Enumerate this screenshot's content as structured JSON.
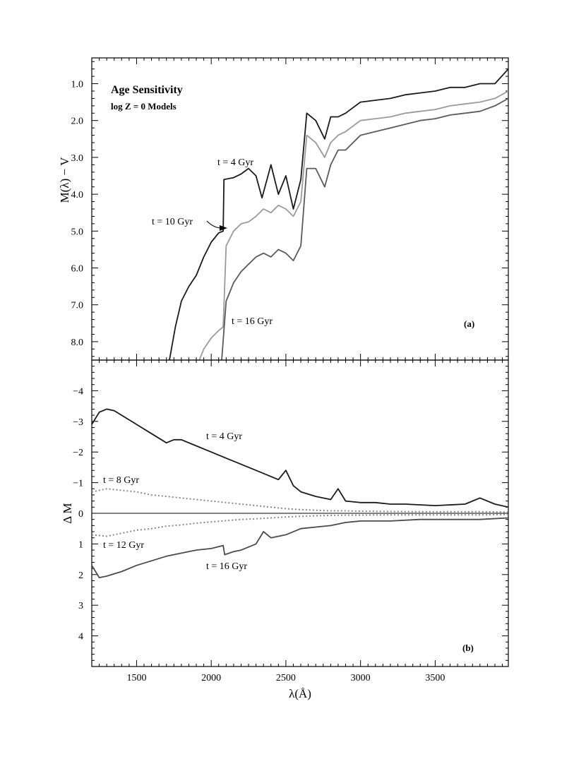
{
  "chart_data": [
    {
      "panel": "a",
      "type": "line",
      "title": "Age Sensitivity",
      "subtitle": "log Z = 0 Models",
      "panel_label": "(a)",
      "ylabel": "M(λ) − V",
      "xlim": [
        1200,
        3990
      ],
      "ylim": [
        8.5,
        0.3
      ],
      "y_inverted": true,
      "yticks": [
        1.0,
        2.0,
        3.0,
        4.0,
        5.0,
        6.0,
        7.0,
        8.0
      ],
      "ytick_labels": [
        "1.0",
        "2.0",
        "3.0",
        "4.0",
        "5.0",
        "6.0",
        "7.0",
        "8.0"
      ],
      "colors": {
        "t4": "#1a1a1a",
        "t10": "#9a9a9a",
        "t16": "#5a5a5a"
      },
      "annotations": [
        "t = 4 Gyr",
        "t = 10 Gyr",
        "t = 16 Gyr"
      ],
      "series": [
        {
          "key": "t4",
          "x": [
            1720,
            1760,
            1800,
            1850,
            1900,
            1950,
            2000,
            2050,
            2080,
            2085,
            2150,
            2200,
            2250,
            2300,
            2340,
            2400,
            2450,
            2500,
            2550,
            2600,
            2640,
            2700,
            2760,
            2800,
            2850,
            2900,
            3000,
            3100,
            3200,
            3300,
            3400,
            3500,
            3600,
            3700,
            3800,
            3900,
            3990
          ],
          "y": [
            8.5,
            7.6,
            6.9,
            6.5,
            6.2,
            5.7,
            5.3,
            5.05,
            5.0,
            3.6,
            3.55,
            3.45,
            3.3,
            3.5,
            4.1,
            3.2,
            4.0,
            3.5,
            4.4,
            3.6,
            1.8,
            2.0,
            2.5,
            1.9,
            1.9,
            1.8,
            1.5,
            1.45,
            1.4,
            1.3,
            1.25,
            1.2,
            1.1,
            1.1,
            1.0,
            1.0,
            0.6
          ]
        },
        {
          "key": "t10",
          "x": [
            1920,
            1950,
            2000,
            2050,
            2080,
            2100,
            2150,
            2200,
            2250,
            2300,
            2350,
            2400,
            2450,
            2500,
            2550,
            2600,
            2640,
            2700,
            2760,
            2800,
            2850,
            2900,
            3000,
            3100,
            3200,
            3300,
            3400,
            3500,
            3600,
            3700,
            3800,
            3900,
            3990
          ],
          "y": [
            8.5,
            8.2,
            7.9,
            7.7,
            7.6,
            5.4,
            5.0,
            4.8,
            4.75,
            4.6,
            4.4,
            4.5,
            4.3,
            4.4,
            4.6,
            4.2,
            2.4,
            2.6,
            3.0,
            2.6,
            2.4,
            2.3,
            2.0,
            1.95,
            1.9,
            1.8,
            1.75,
            1.7,
            1.6,
            1.55,
            1.5,
            1.4,
            1.2
          ]
        },
        {
          "key": "t16",
          "x": [
            2070,
            2100,
            2150,
            2200,
            2250,
            2300,
            2350,
            2400,
            2450,
            2500,
            2550,
            2600,
            2640,
            2700,
            2760,
            2800,
            2850,
            2900,
            3000,
            3100,
            3200,
            3300,
            3400,
            3500,
            3600,
            3700,
            3800,
            3900,
            3990
          ],
          "y": [
            8.5,
            6.9,
            6.4,
            6.1,
            5.9,
            5.7,
            5.6,
            5.7,
            5.5,
            5.6,
            5.8,
            5.4,
            3.3,
            3.3,
            3.8,
            3.2,
            2.8,
            2.8,
            2.4,
            2.3,
            2.2,
            2.1,
            2.0,
            1.95,
            1.85,
            1.8,
            1.75,
            1.6,
            1.4
          ]
        }
      ]
    },
    {
      "panel": "b",
      "type": "line",
      "panel_label": "(b)",
      "xlabel": "λ(Å)",
      "ylabel": "Δ M",
      "xlim": [
        1200,
        3990
      ],
      "ylim": [
        5,
        -5
      ],
      "y_inverted": true,
      "xticks": [
        1500,
        2000,
        2500,
        3000,
        3500
      ],
      "xtick_labels": [
        "1500",
        "2000",
        "2500",
        "3000",
        "3500"
      ],
      "yticks": [
        -4,
        -3,
        -2,
        -1,
        0,
        1,
        2,
        3,
        4
      ],
      "ytick_labels": [
        "−4",
        "−3",
        "−2",
        "−1",
        "0",
        "1",
        "2",
        "3",
        "4"
      ],
      "colors": {
        "t4": "#1a1a1a",
        "t8": "#888888",
        "t12": "#888888",
        "t16": "#4a4a4a"
      },
      "annotations": [
        "t = 4 Gyr",
        "t = 8 Gyr",
        "t = 12 Gyr",
        "t = 16 Gyr"
      ],
      "series": [
        {
          "key": "t4",
          "style": "solid",
          "x": [
            1200,
            1250,
            1300,
            1350,
            1400,
            1500,
            1600,
            1700,
            1750,
            1800,
            1900,
            2000,
            2100,
            2200,
            2300,
            2400,
            2450,
            2500,
            2550,
            2600,
            2700,
            2800,
            2850,
            2900,
            3000,
            3100,
            3200,
            3300,
            3500,
            3700,
            3800,
            3900,
            3990
          ],
          "y": [
            -2.9,
            -3.3,
            -3.4,
            -3.35,
            -3.2,
            -2.9,
            -2.6,
            -2.3,
            -2.4,
            -2.4,
            -2.2,
            -2.0,
            -1.8,
            -1.6,
            -1.4,
            -1.2,
            -1.1,
            -1.4,
            -0.9,
            -0.7,
            -0.55,
            -0.45,
            -0.8,
            -0.4,
            -0.35,
            -0.35,
            -0.3,
            -0.3,
            -0.25,
            -0.3,
            -0.5,
            -0.3,
            -0.2
          ]
        },
        {
          "key": "t8",
          "style": "dotted",
          "x": [
            1200,
            1300,
            1400,
            1500,
            1600,
            1700,
            1800,
            1900,
            2000,
            2100,
            2200,
            2300,
            2400,
            2500,
            2600,
            2700,
            2800,
            2900,
            3000,
            3200,
            3400,
            3600,
            3800,
            3990
          ],
          "y": [
            -0.7,
            -0.8,
            -0.75,
            -0.7,
            -0.6,
            -0.55,
            -0.5,
            -0.45,
            -0.4,
            -0.35,
            -0.3,
            -0.25,
            -0.2,
            -0.15,
            -0.12,
            -0.1,
            -0.08,
            -0.08,
            -0.07,
            -0.06,
            -0.05,
            -0.05,
            -0.05,
            -0.04
          ]
        },
        {
          "key": "t12",
          "style": "dotted",
          "x": [
            1200,
            1300,
            1400,
            1500,
            1600,
            1700,
            1800,
            1900,
            2000,
            2100,
            2200,
            2300,
            2400,
            2500,
            2600,
            2700,
            2800,
            2900,
            3000,
            3200,
            3400,
            3600,
            3800,
            3990
          ],
          "y": [
            0.7,
            0.75,
            0.65,
            0.55,
            0.5,
            0.42,
            0.38,
            0.32,
            0.28,
            0.24,
            0.2,
            0.18,
            0.15,
            0.12,
            0.1,
            0.08,
            0.07,
            0.06,
            0.06,
            0.05,
            0.05,
            0.05,
            0.05,
            0.04
          ]
        },
        {
          "key": "t16",
          "style": "solid",
          "x": [
            1200,
            1250,
            1300,
            1400,
            1500,
            1600,
            1700,
            1800,
            1900,
            2000,
            2080,
            2090,
            2150,
            2200,
            2300,
            2350,
            2400,
            2500,
            2600,
            2700,
            2800,
            2900,
            3000,
            3200,
            3400,
            3600,
            3800,
            3990
          ],
          "y": [
            1.7,
            2.1,
            2.05,
            1.9,
            1.7,
            1.55,
            1.4,
            1.3,
            1.2,
            1.15,
            1.05,
            1.35,
            1.25,
            1.2,
            1.0,
            0.6,
            0.8,
            0.7,
            0.5,
            0.45,
            0.4,
            0.3,
            0.25,
            0.25,
            0.2,
            0.2,
            0.2,
            0.15
          ]
        }
      ]
    }
  ]
}
